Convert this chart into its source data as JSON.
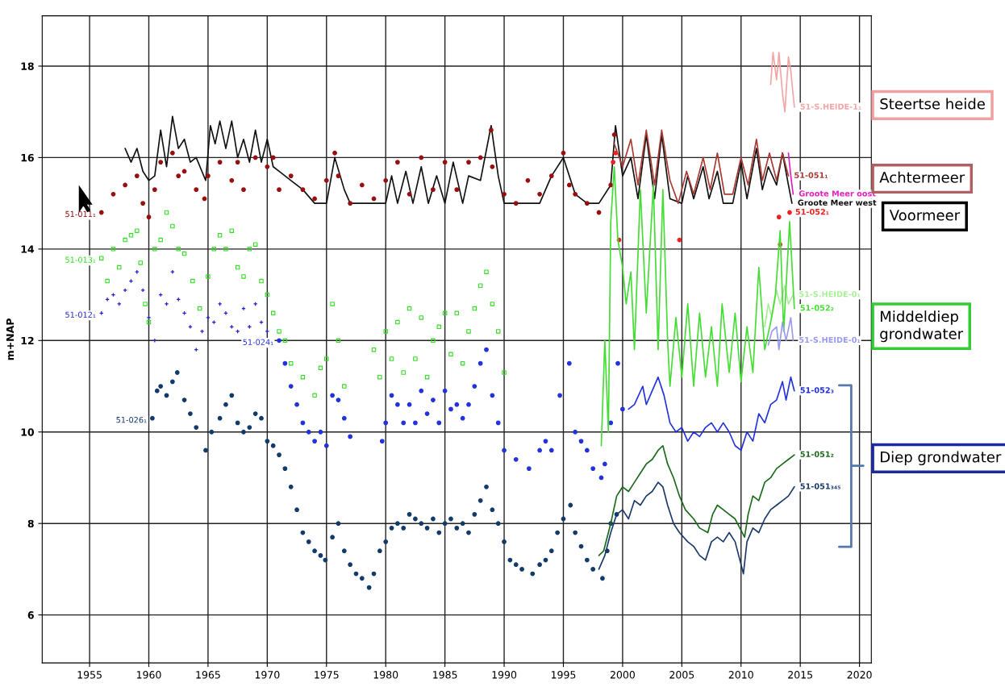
{
  "chart_data": {
    "type": "line",
    "ylabel": "m+NAP",
    "xlim": [
      1951,
      2021
    ],
    "ylim": [
      4.95,
      19.1
    ],
    "xticks": [
      1955,
      1960,
      1965,
      1970,
      1975,
      1980,
      1985,
      1990,
      1995,
      2000,
      2005,
      2010,
      2015,
      2020
    ],
    "yticks": [
      6,
      8,
      10,
      12,
      14,
      16,
      18
    ],
    "grid": true,
    "series": [
      {
        "name": "51-S.HEIDE-1₁",
        "color": "#f4a4a4",
        "x": [
          2012.5,
          2012.7,
          2013.0,
          2013.2,
          2013.5,
          2013.7,
          2014.0,
          2014.2,
          2014.5
        ],
        "values": [
          17.6,
          18.3,
          17.7,
          18.3,
          17.4,
          17.0,
          18.2,
          17.9,
          17.1
        ]
      },
      {
        "name": "Groote Meer west",
        "color": "#111111",
        "x": [
          1958,
          1958.5,
          1959,
          1959.5,
          1960,
          1960.5,
          1961,
          1961.5,
          1962,
          1962.5,
          1963,
          1963.5,
          1964,
          1964.8,
          1965.2,
          1965.6,
          1966,
          1966.5,
          1967,
          1967.5,
          1968,
          1968.5,
          1969,
          1969.5,
          1970,
          1970.5,
          1971,
          1972,
          1973,
          1974,
          1975,
          1975.7,
          1976.5,
          1977,
          1978,
          1979,
          1980,
          1980.5,
          1981,
          1981.7,
          1982.3,
          1983,
          1983.6,
          1984.3,
          1985,
          1985.7,
          1986.5,
          1987,
          1988,
          1988.9,
          1989.5,
          1990,
          1991,
          1992,
          1993,
          1994,
          1995,
          1996,
          1997,
          1998,
          1999,
          1999.4,
          2000,
          2000.7,
          2001.3,
          2002,
          2002.7,
          2003.3,
          2004,
          2005,
          2005.5,
          2006,
          2006.8,
          2007.3,
          2008,
          2008.5,
          2009.3,
          2010,
          2010.5,
          2011.3,
          2011.8,
          2012.3,
          2013,
          2013.5,
          2014,
          2014.3
        ],
        "values": [
          16.2,
          15.9,
          16.2,
          15.7,
          15.5,
          15.6,
          16.6,
          15.8,
          16.9,
          16.2,
          16.4,
          15.9,
          16.0,
          15.5,
          16.7,
          16.3,
          16.8,
          16.2,
          16.8,
          16.0,
          16.4,
          15.9,
          16.6,
          15.9,
          16.4,
          15.8,
          15.7,
          15.5,
          15.3,
          15.0,
          15.0,
          16.0,
          15.3,
          15.0,
          15.0,
          15.0,
          15.0,
          15.6,
          15.0,
          15.7,
          15.0,
          15.8,
          15.0,
          15.6,
          15.0,
          15.9,
          15.0,
          15.6,
          15.5,
          16.7,
          15.6,
          15.0,
          15.0,
          15.0,
          15.0,
          15.6,
          16.0,
          15.2,
          15.0,
          15.0,
          15.4,
          16.7,
          15.6,
          16.0,
          15.1,
          16.5,
          15.1,
          16.5,
          15.1,
          15.0,
          15.6,
          15.1,
          15.8,
          15.1,
          15.7,
          15.0,
          15.0,
          15.9,
          15.1,
          16.2,
          15.3,
          15.8,
          15.4,
          16.1,
          15.4,
          15.0
        ]
      },
      {
        "name": "51-011₁",
        "type": "scatter",
        "marker": "circle",
        "color": "#990f0f",
        "x": [
          1956,
          1957,
          1958,
          1959,
          1959.5,
          1960,
          1960.5,
          1961,
          1962,
          1962.5,
          1963,
          1964,
          1964.7,
          1965,
          1966,
          1967,
          1967.5,
          1968,
          1969,
          1970,
          1970.5,
          1971,
          1972,
          1973,
          1974,
          1975,
          1975.7,
          1976,
          1977,
          1978,
          1979,
          1980,
          1981,
          1982,
          1983,
          1984,
          1985,
          1986,
          1987,
          1988,
          1988.9,
          1989,
          1990,
          1991,
          1992,
          1993,
          1994,
          1995,
          1995.5,
          1996,
          1997,
          1998,
          1999,
          1999.3
        ],
        "values": [
          14.8,
          15.2,
          15.4,
          15.6,
          15.0,
          14.7,
          15.3,
          15.9,
          16.1,
          15.6,
          15.7,
          15.3,
          15.1,
          15.6,
          15.9,
          15.5,
          15.9,
          15.3,
          16.0,
          15.8,
          16.0,
          15.3,
          15.6,
          15.3,
          15.1,
          15.5,
          16.1,
          15.6,
          15.0,
          15.4,
          15.1,
          15.5,
          15.9,
          15.2,
          16.0,
          15.3,
          15.9,
          15.3,
          15.9,
          16.0,
          16.6,
          15.8,
          15.2,
          15.0,
          15.5,
          15.2,
          15.6,
          16.1,
          15.4,
          15.2,
          15.0,
          14.8,
          15.4,
          16.5
        ]
      },
      {
        "name": "51-051₁",
        "color": "#a83a34",
        "x": [
          1999.3,
          2000,
          2000.7,
          2001.3,
          2002,
          2002.7,
          2003.3,
          2004,
          2004.7,
          2005.4,
          2006,
          2006.8,
          2007.4,
          2008,
          2008.6,
          2009.3,
          2010,
          2010.6,
          2011.3,
          2011.8,
          2012.4,
          2013,
          2013.5,
          2014
        ],
        "values": [
          16.3,
          15.8,
          16.4,
          15.4,
          16.6,
          15.4,
          16.6,
          15.5,
          15.0,
          15.7,
          15.2,
          16.0,
          15.3,
          16.1,
          15.2,
          15.2,
          16.0,
          15.4,
          16.4,
          15.5,
          16.1,
          15.5,
          16.1,
          15.6
        ]
      },
      {
        "name": "Groote Meer oost",
        "color": "#e020c0",
        "x": [
          2014.0,
          2014.2,
          2014.4
        ],
        "values": [
          16.1,
          15.6,
          15.2
        ]
      },
      {
        "name": "51-052₁",
        "type": "scatter",
        "marker": "circle",
        "color": "#ee2222",
        "x": [
          1999.2,
          1999.4,
          1999.7,
          2004.8,
          2013.2,
          2013.3,
          2014.1
        ],
        "values": [
          15.9,
          16.1,
          14.2,
          14.2,
          14.7,
          14.1,
          14.8
        ]
      },
      {
        "name": "51-013₁",
        "type": "scatter",
        "marker": "square",
        "color": "#33dd22",
        "x": [
          1956,
          1956.5,
          1957,
          1957.5,
          1958,
          1958.5,
          1959,
          1959.3,
          1959.7,
          1960,
          1960.5,
          1961,
          1961.5,
          1962,
          1962.5,
          1963,
          1963.7,
          1964.3,
          1965,
          1965.5,
          1966,
          1966.5,
          1967,
          1967.5,
          1968,
          1968.5,
          1969,
          1969.5,
          1970,
          1970.5,
          1971,
          1971.5,
          1972,
          1973,
          1974,
          1974.5,
          1975,
          1975.5,
          1976,
          1976.5,
          1979,
          1979.5,
          1980,
          1980.5,
          1981,
          1981.5,
          1982,
          1982.5,
          1983,
          1983.5,
          1984,
          1984.5,
          1985,
          1985.5,
          1986,
          1986.5,
          1987,
          1987.5,
          1988,
          1988.5,
          1989,
          1989.5,
          1990
        ],
        "values": [
          13.8,
          13.3,
          14.0,
          13.6,
          14.2,
          14.3,
          14.4,
          13.7,
          12.8,
          12.4,
          14.0,
          14.2,
          14.8,
          14.5,
          14.0,
          13.9,
          13.3,
          12.7,
          13.4,
          14.0,
          14.3,
          14.0,
          14.4,
          13.6,
          13.4,
          14.0,
          14.1,
          13.3,
          13.0,
          12.6,
          12.2,
          12.0,
          11.5,
          11.2,
          10.8,
          11.4,
          11.6,
          12.8,
          12.0,
          11.0,
          11.8,
          11.2,
          12.2,
          11.6,
          12.4,
          11.3,
          12.7,
          11.6,
          12.5,
          11.2,
          12.0,
          12.3,
          12.6,
          11.7,
          12.6,
          11.5,
          12.2,
          12.7,
          13.2,
          13.5,
          12.8,
          12.2,
          11.3
        ]
      },
      {
        "name": "51-012₁",
        "type": "scatter",
        "marker": "cross",
        "color": "#2222cc",
        "x": [
          1956,
          1956.5,
          1957,
          1957.5,
          1958,
          1958.5,
          1959,
          1959.5,
          1960,
          1960.5,
          1961,
          1961.5,
          1962,
          1962.5,
          1963,
          1963.5,
          1964,
          1964.5,
          1965,
          1965.5,
          1966,
          1966.5,
          1967,
          1967.5,
          1968,
          1968.5,
          1969,
          1969.5,
          1970
        ],
        "values": [
          12.6,
          12.9,
          13.0,
          12.8,
          13.1,
          13.3,
          13.5,
          13.1,
          12.5,
          12.0,
          13.0,
          12.8,
          13.5,
          12.9,
          12.6,
          12.3,
          11.8,
          12.2,
          12.5,
          12.4,
          12.8,
          12.6,
          12.3,
          12.2,
          12.7,
          12.3,
          12.8,
          12.4,
          12.2
        ]
      },
      {
        "name": "51-024₁",
        "type": "scatter",
        "marker": "circle",
        "color": "#2233dd",
        "x": [
          1971,
          1971.5,
          1972,
          1972.5,
          1973,
          1973.5,
          1974,
          1974.5,
          1975,
          1975.5,
          1976,
          1976.5,
          1977,
          1979.7,
          1980,
          1980.5,
          1981,
          1981.5,
          1982,
          1982.5,
          1983,
          1983.5,
          1984,
          1984.5,
          1985,
          1985.5,
          1986,
          1986.5,
          1987,
          1987.5,
          1988,
          1988.5,
          1989,
          1989.5,
          1990,
          1991,
          1992.1,
          1993,
          1993.5,
          1994,
          1994.7,
          1995.5,
          1996,
          1996.5,
          1997,
          1997.5,
          1998.2,
          1998.5,
          1999,
          1999.6,
          2000
        ],
        "values": [
          12.0,
          11.5,
          11.0,
          10.6,
          10.2,
          10.0,
          9.8,
          10.0,
          9.7,
          10.8,
          10.7,
          10.3,
          9.9,
          9.8,
          10.2,
          10.8,
          10.6,
          10.2,
          10.6,
          10.2,
          10.9,
          10.4,
          10.7,
          10.2,
          10.9,
          10.5,
          10.6,
          10.3,
          10.6,
          11.0,
          11.5,
          11.8,
          10.8,
          10.2,
          9.6,
          9.4,
          9.2,
          9.6,
          9.8,
          9.6,
          10.8,
          11.5,
          10.0,
          9.8,
          9.6,
          9.2,
          9.0,
          9.3,
          10.2,
          11.5,
          10.5
        ]
      },
      {
        "name": "51-S.HEIDE-0₁",
        "color": "#a8f098",
        "x": [
          2012.0,
          2012.3,
          2012.6,
          2013.0,
          2013.3,
          2013.7,
          2014.0,
          2014.4
        ],
        "values": [
          12.3,
          12.8,
          12.5,
          13.1,
          12.8,
          13.2,
          12.8,
          13.0
        ]
      },
      {
        "name": "51-052₂",
        "color": "#44dd33",
        "x": [
          1998.2,
          1998.5,
          1998.8,
          1999.0,
          1999.3,
          1999.6,
          2000,
          2000.3,
          2000.7,
          2001,
          2001.5,
          2002,
          2002.6,
          2003,
          2003.4,
          2003.8,
          2004,
          2004.5,
          2005,
          2005.5,
          2006,
          2006.5,
          2007,
          2007.5,
          2008,
          2008.4,
          2009,
          2009.5,
          2010,
          2010.5,
          2011,
          2011.5,
          2012,
          2012.5,
          2012.9,
          2013.3,
          2013.6,
          2014.1,
          2014.5
        ],
        "values": [
          9.7,
          12.0,
          10.0,
          14.6,
          15.8,
          14.2,
          13.6,
          12.8,
          13.5,
          11.8,
          15.3,
          12.6,
          15.4,
          11.8,
          15.3,
          12.0,
          11.0,
          12.5,
          11.2,
          12.8,
          11.0,
          12.6,
          11.2,
          12.3,
          11.0,
          12.8,
          11.3,
          12.6,
          11.1,
          12.3,
          11.3,
          13.6,
          11.8,
          12.4,
          13.0,
          14.4,
          12.2,
          14.6,
          12.7
        ]
      },
      {
        "name": "51-S.HEIDE-0₁",
        "color": "#9a9aee",
        "x": [
          2012.3,
          2012.6,
          2013.0,
          2013.2,
          2013.5,
          2013.8,
          2014.2,
          2014.4
        ],
        "values": [
          11.9,
          12.2,
          12.3,
          11.8,
          12.4,
          12.0,
          12.5,
          12.0
        ]
      },
      {
        "name": "51-052₃",
        "color": "#2233dd",
        "x": [
          2000.5,
          2001,
          2001.7,
          2002,
          2002.5,
          2003,
          2003.5,
          2004,
          2004.5,
          2005,
          2005.5,
          2006,
          2006.5,
          2007,
          2007.5,
          2008,
          2008.5,
          2009,
          2009.5,
          2010,
          2010.5,
          2011,
          2011.5,
          2012,
          2012.5,
          2013,
          2013.5,
          2013.8,
          2014.2,
          2014.5
        ],
        "values": [
          10.5,
          10.6,
          11.0,
          10.6,
          10.9,
          11.2,
          10.8,
          10.2,
          10.0,
          10.1,
          9.8,
          10.0,
          9.9,
          10.1,
          10.2,
          10.0,
          10.2,
          10.0,
          9.7,
          9.6,
          10.0,
          9.8,
          10.4,
          10.2,
          10.6,
          10.7,
          11.1,
          10.7,
          11.2,
          10.9
        ]
      },
      {
        "name": "51-026₁",
        "type": "scatter",
        "marker": "circle",
        "color": "#123a6a",
        "x": [
          1960.3,
          1960.7,
          1961,
          1961.5,
          1962,
          1962.4,
          1963,
          1963.5,
          1964,
          1964.8,
          1965.3,
          1966,
          1966.5,
          1967,
          1967.5,
          1968,
          1968.5,
          1969,
          1969.5,
          1970,
          1970.5,
          1971,
          1971.5,
          1972,
          1972.5,
          1973,
          1973.5,
          1974,
          1974.5,
          1974.9,
          1975.5,
          1976,
          1976.5,
          1977,
          1977.5,
          1978,
          1978.6,
          1979,
          1979.5,
          1980,
          1980.5,
          1981,
          1981.5,
          1982,
          1982.5,
          1983,
          1983.5,
          1984,
          1984.5,
          1985,
          1985.5,
          1986,
          1986.5,
          1987,
          1987.5,
          1988,
          1988.5,
          1989,
          1989.5,
          1990,
          1990.5,
          1991,
          1991.5,
          1992.4,
          1993,
          1993.5,
          1994,
          1994.5,
          1995,
          1995.6,
          1996,
          1996.5,
          1997,
          1997.5,
          1998.3,
          1998.7,
          1999,
          1999.5
        ],
        "values": [
          10.3,
          10.9,
          11.0,
          10.8,
          11.1,
          11.3,
          10.7,
          10.4,
          10.1,
          9.6,
          10.0,
          10.3,
          10.6,
          10.8,
          10.2,
          10.0,
          10.1,
          10.4,
          10.3,
          9.8,
          9.7,
          9.5,
          9.2,
          8.8,
          8.3,
          7.8,
          7.6,
          7.4,
          7.3,
          7.2,
          7.7,
          8.0,
          7.4,
          7.1,
          6.9,
          6.8,
          6.6,
          6.9,
          7.4,
          7.6,
          7.9,
          8.0,
          7.9,
          8.2,
          8.1,
          8.0,
          7.9,
          8.1,
          7.8,
          8.0,
          8.1,
          7.9,
          8.0,
          7.8,
          8.2,
          8.5,
          8.8,
          8.3,
          8.0,
          7.6,
          7.2,
          7.1,
          7.0,
          6.9,
          7.1,
          7.2,
          7.4,
          7.8,
          8.1,
          8.4,
          7.8,
          7.5,
          7.2,
          7.0,
          6.8,
          7.4,
          8.0,
          8.2
        ]
      },
      {
        "name": "51-051₂",
        "color": "#1a6a1a",
        "x": [
          1998.0,
          1998.4,
          1999,
          1999.5,
          2000,
          2000.5,
          2001,
          2001.5,
          2002,
          2002.5,
          2003,
          2003.4,
          2003.8,
          2004.3,
          2004.8,
          2005.3,
          2006,
          2006.5,
          2007.2,
          2007.6,
          2008,
          2008.5,
          2009,
          2009.5,
          2010.3,
          2010.6,
          2011,
          2011.5,
          2012,
          2012.5,
          2013,
          2013.5,
          2014,
          2014.5
        ],
        "values": [
          7.3,
          7.4,
          8.0,
          8.6,
          8.8,
          8.7,
          8.9,
          9.1,
          9.3,
          9.4,
          9.6,
          9.7,
          9.3,
          9.0,
          8.6,
          8.3,
          8.1,
          7.9,
          7.8,
          8.2,
          8.4,
          8.3,
          8.2,
          8.1,
          7.7,
          8.2,
          8.6,
          8.5,
          8.9,
          9.0,
          9.2,
          9.3,
          9.4,
          9.5
        ]
      },
      {
        "name": "51-051₃₄₅",
        "color": "#1a3a6a",
        "x": [
          1998.0,
          1998.5,
          1999,
          1999.5,
          2000,
          2000.5,
          2001,
          2001.5,
          2002,
          2002.5,
          2003,
          2003.4,
          2003.8,
          2004.3,
          2004.8,
          2005.5,
          2006,
          2006.5,
          2007,
          2007.5,
          2008,
          2008.5,
          2009,
          2009.5,
          2010.2,
          2010.5,
          2011,
          2011.5,
          2012,
          2012.5,
          2013,
          2013.5,
          2014,
          2014.5
        ],
        "values": [
          7.0,
          7.3,
          7.8,
          8.2,
          8.3,
          8.1,
          8.5,
          8.4,
          8.6,
          8.7,
          8.9,
          8.8,
          8.4,
          8.0,
          7.8,
          7.6,
          7.5,
          7.3,
          7.2,
          7.6,
          7.7,
          7.6,
          7.8,
          7.6,
          6.9,
          7.6,
          7.9,
          7.8,
          8.1,
          8.3,
          8.4,
          8.5,
          8.6,
          8.8
        ]
      }
    ],
    "annotations": [
      "Steertse heide",
      "Achtermeer",
      "Voormeer",
      "Middeldiep grondwater",
      "Diep grondwater"
    ]
  }
}
